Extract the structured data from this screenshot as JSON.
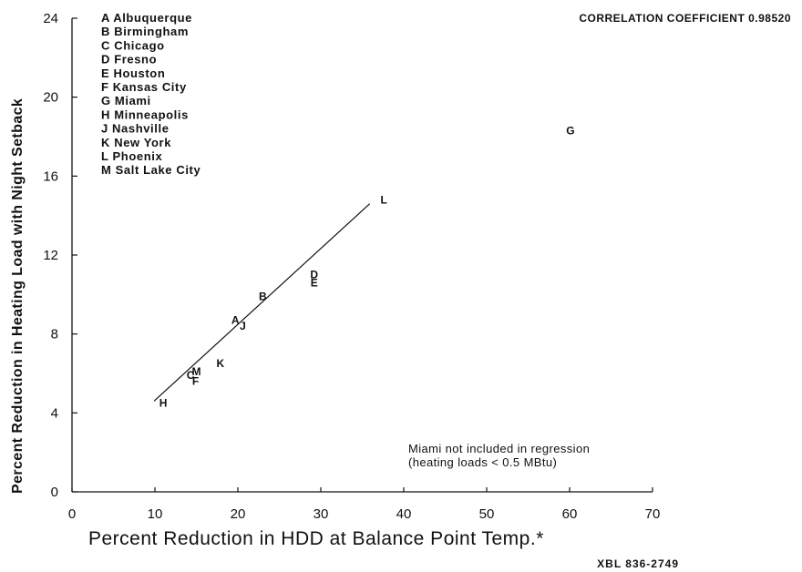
{
  "chart_data": {
    "type": "scatter",
    "title": "",
    "xlabel": "Percent Reduction in HDD at Balance Point Temp.*",
    "ylabel": "Percent Reduction in Heating Load with Night Setback",
    "xlim": [
      0,
      70
    ],
    "ylim": [
      0,
      24
    ],
    "x_ticks": [
      0,
      10,
      20,
      30,
      40,
      50,
      60,
      70
    ],
    "y_ticks": [
      0,
      4,
      8,
      12,
      16,
      20,
      24
    ],
    "grid": false,
    "legend_placement": "top-left",
    "legend": [
      "A Albuquerque",
      "B Birmingham",
      "C Chicago",
      "D Fresno",
      "E Houston",
      "F Kansas City",
      "G Miami",
      "H Minneapolis",
      "J Nashville",
      "K New York",
      "L Phoenix",
      "M Salt Lake City"
    ],
    "points": [
      {
        "label": "A",
        "x": 19.7,
        "y": 8.7
      },
      {
        "label": "B",
        "x": 23.0,
        "y": 9.9
      },
      {
        "label": "C",
        "x": 14.3,
        "y": 5.9
      },
      {
        "label": "D",
        "x": 29.2,
        "y": 11.0
      },
      {
        "label": "E",
        "x": 29.2,
        "y": 10.6
      },
      {
        "label": "F",
        "x": 14.9,
        "y": 5.6
      },
      {
        "label": "G",
        "x": 60.1,
        "y": 18.3
      },
      {
        "label": "H",
        "x": 11.0,
        "y": 4.5
      },
      {
        "label": "J",
        "x": 20.6,
        "y": 8.4
      },
      {
        "label": "K",
        "x": 17.9,
        "y": 6.5
      },
      {
        "label": "L",
        "x": 37.6,
        "y": 14.8
      },
      {
        "label": "M",
        "x": 15.0,
        "y": 6.1
      }
    ],
    "regression_line": {
      "x": [
        9.9,
        35.9
      ],
      "y": [
        4.6,
        14.6
      ]
    },
    "annotations": {
      "correlation": "CORRELATION COEFFICIENT 0.98520",
      "note_line1": "Miami not included in regression",
      "note_line2": "(heating loads < 0.5 MBtu)",
      "figure_code": "XBL 836-2749"
    }
  }
}
